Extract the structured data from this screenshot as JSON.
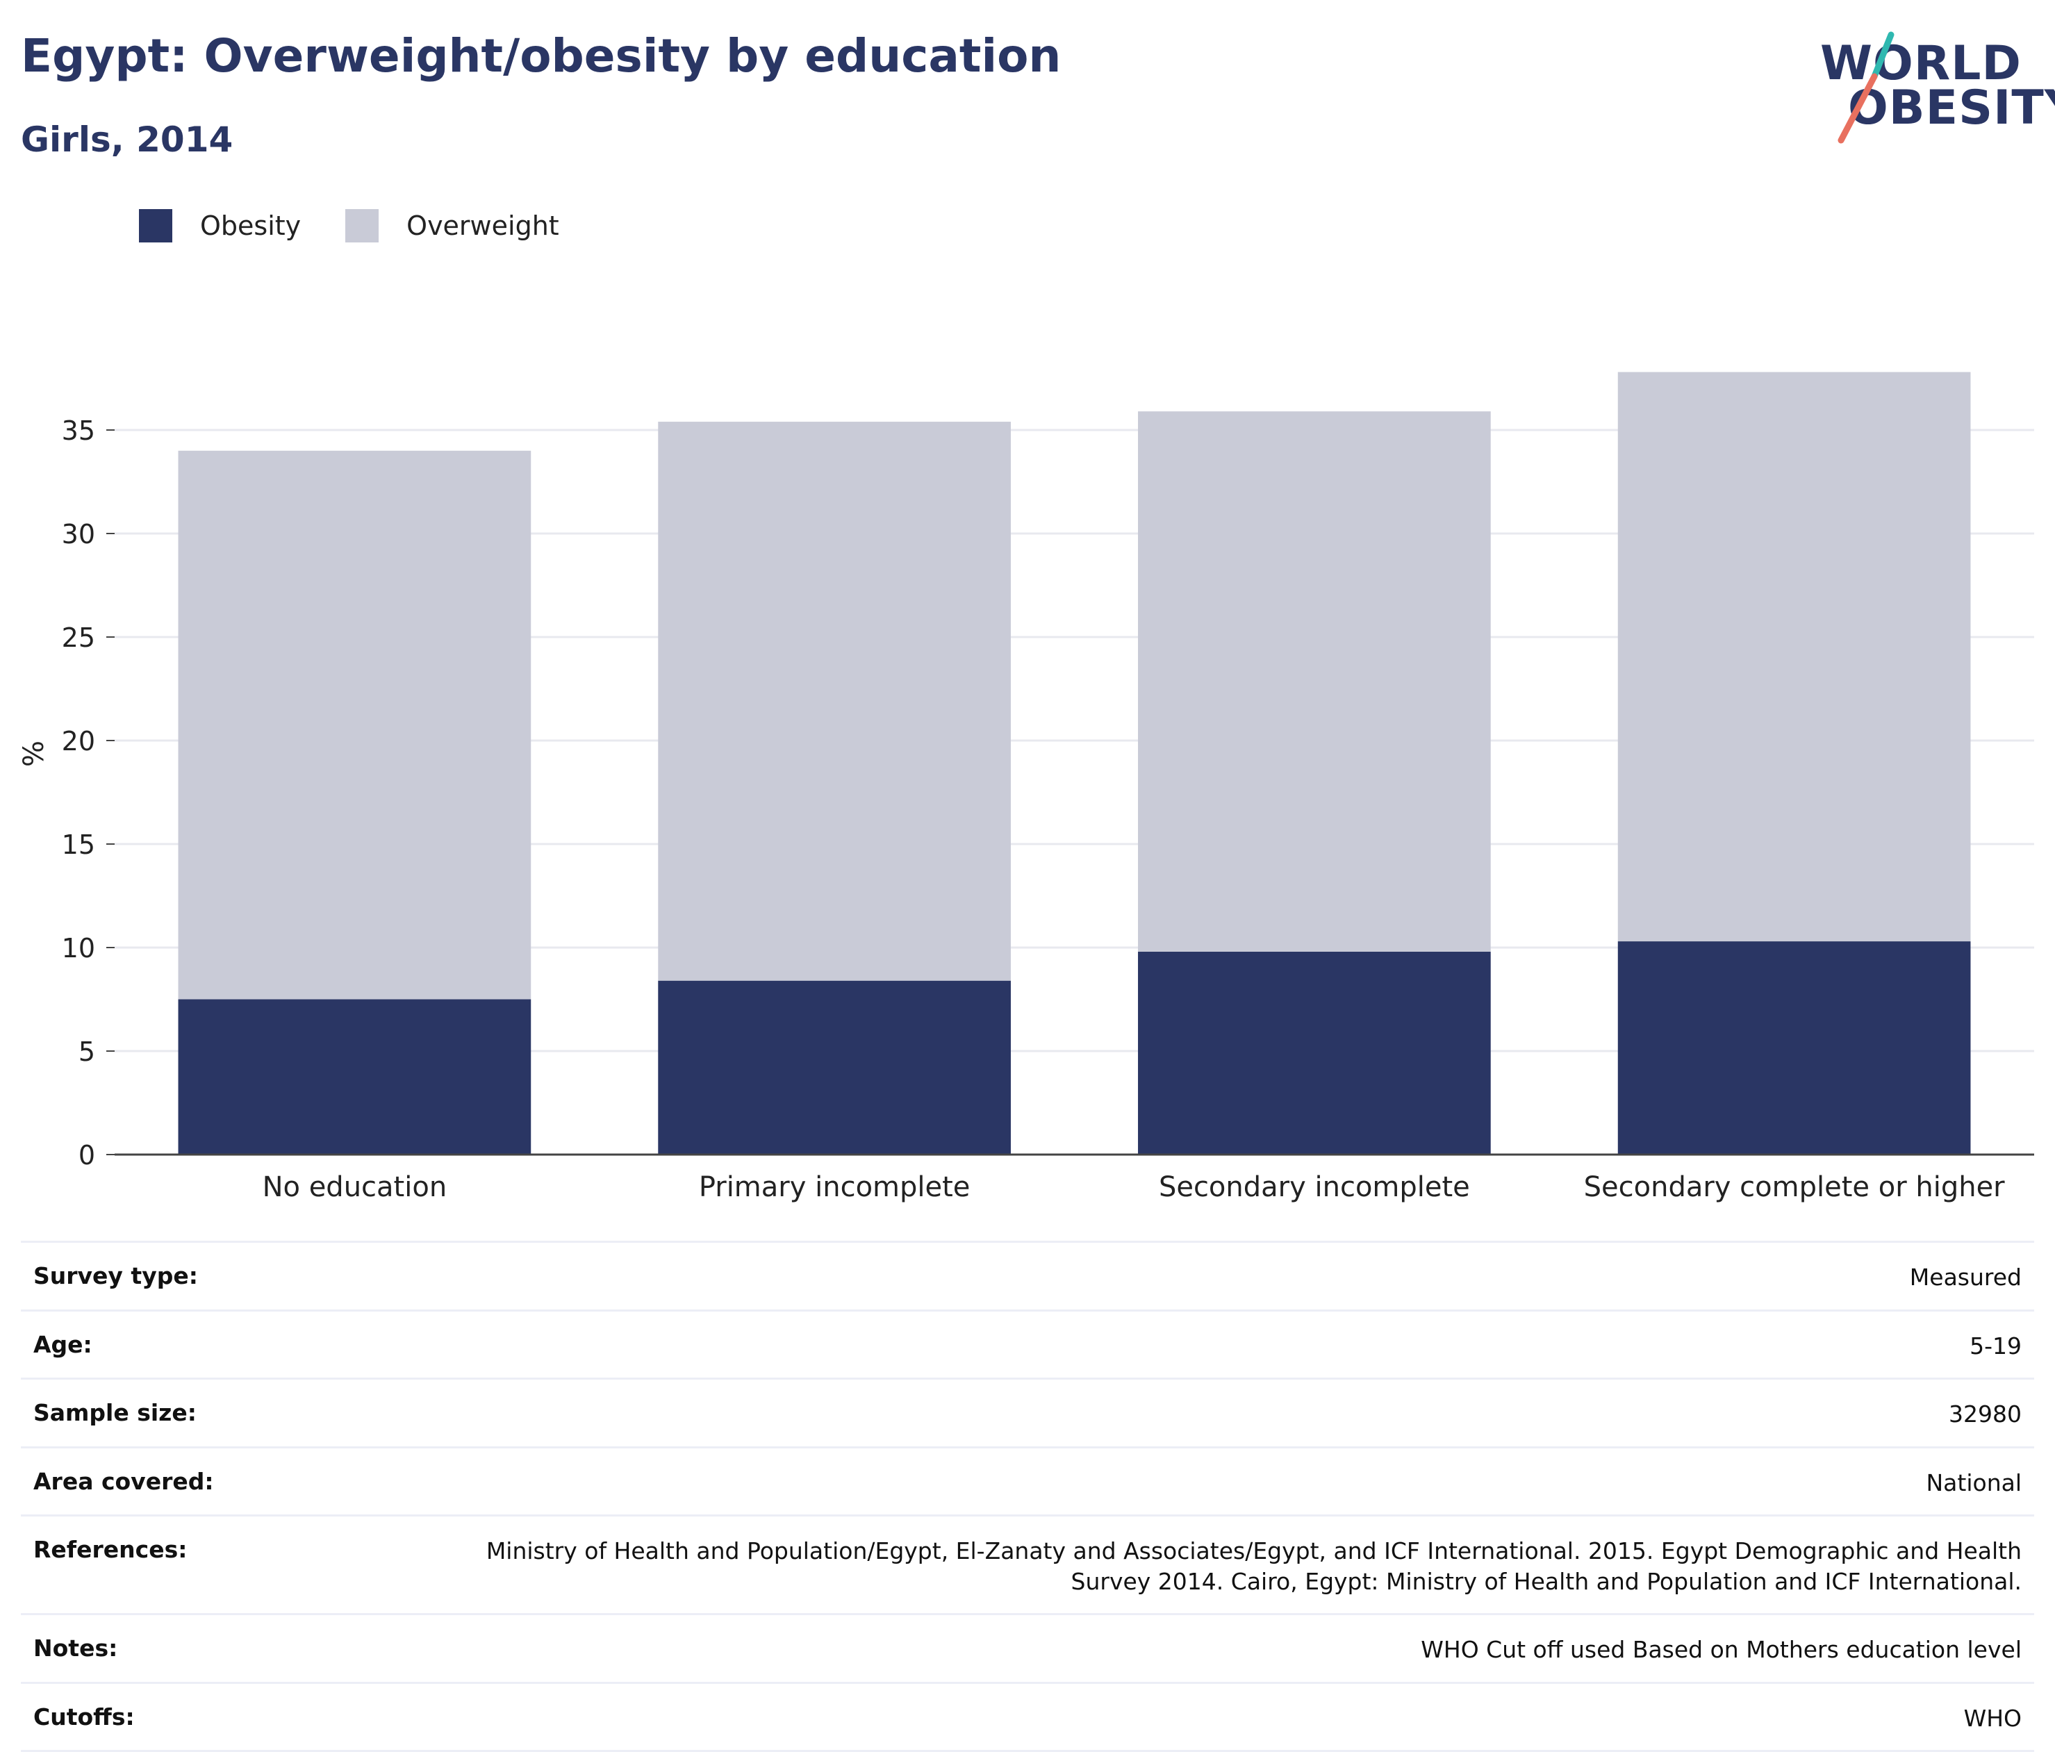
{
  "header": {
    "title": "Egypt: Overweight/obesity by education",
    "subtitle": "Girls, 2014"
  },
  "logo": {
    "line1": "WORLD",
    "line2": "OBESITY",
    "accent_colors": [
      "#2fb8b0",
      "#e8705f"
    ]
  },
  "legend": {
    "items": [
      {
        "label": "Obesity",
        "color": "#2a3664"
      },
      {
        "label": "Overweight",
        "color": "#c9cbd7"
      }
    ]
  },
  "chart_data": {
    "type": "bar",
    "stacked": true,
    "title": "Egypt: Overweight/obesity by education",
    "subtitle": "Girls, 2014",
    "categories": [
      "No education",
      "Primary incomplete",
      "Secondary incomplete",
      "Secondary complete or higher"
    ],
    "series": [
      {
        "name": "Obesity",
        "color": "#2a3664",
        "values": [
          7.5,
          8.4,
          9.8,
          10.3
        ]
      },
      {
        "name": "Overweight",
        "color": "#c9cbd7",
        "values": [
          26.5,
          27.0,
          26.1,
          27.5
        ]
      }
    ],
    "ylabel": "%",
    "xlabel": "",
    "ylim": [
      0,
      40
    ],
    "yticks": [
      0,
      5,
      10,
      15,
      20,
      25,
      30,
      35
    ],
    "grid": true,
    "legend_position": "top-left"
  },
  "info": {
    "rows": [
      {
        "label": "Survey type:",
        "value": "Measured"
      },
      {
        "label": "Age:",
        "value": "5-19"
      },
      {
        "label": "Sample size:",
        "value": "32980"
      },
      {
        "label": "Area covered:",
        "value": "National"
      },
      {
        "label": "References:",
        "value": "Ministry of Health and Population/Egypt, El-Zanaty and Associates/Egypt, and ICF International. 2015. Egypt Demographic and Health Survey 2014. Cairo, Egypt: Ministry of Health and Population and ICF International."
      },
      {
        "label": "Notes:",
        "value": "WHO Cut off used Based on Mothers education level"
      },
      {
        "label": "Cutoffs:",
        "value": "WHO"
      }
    ]
  }
}
